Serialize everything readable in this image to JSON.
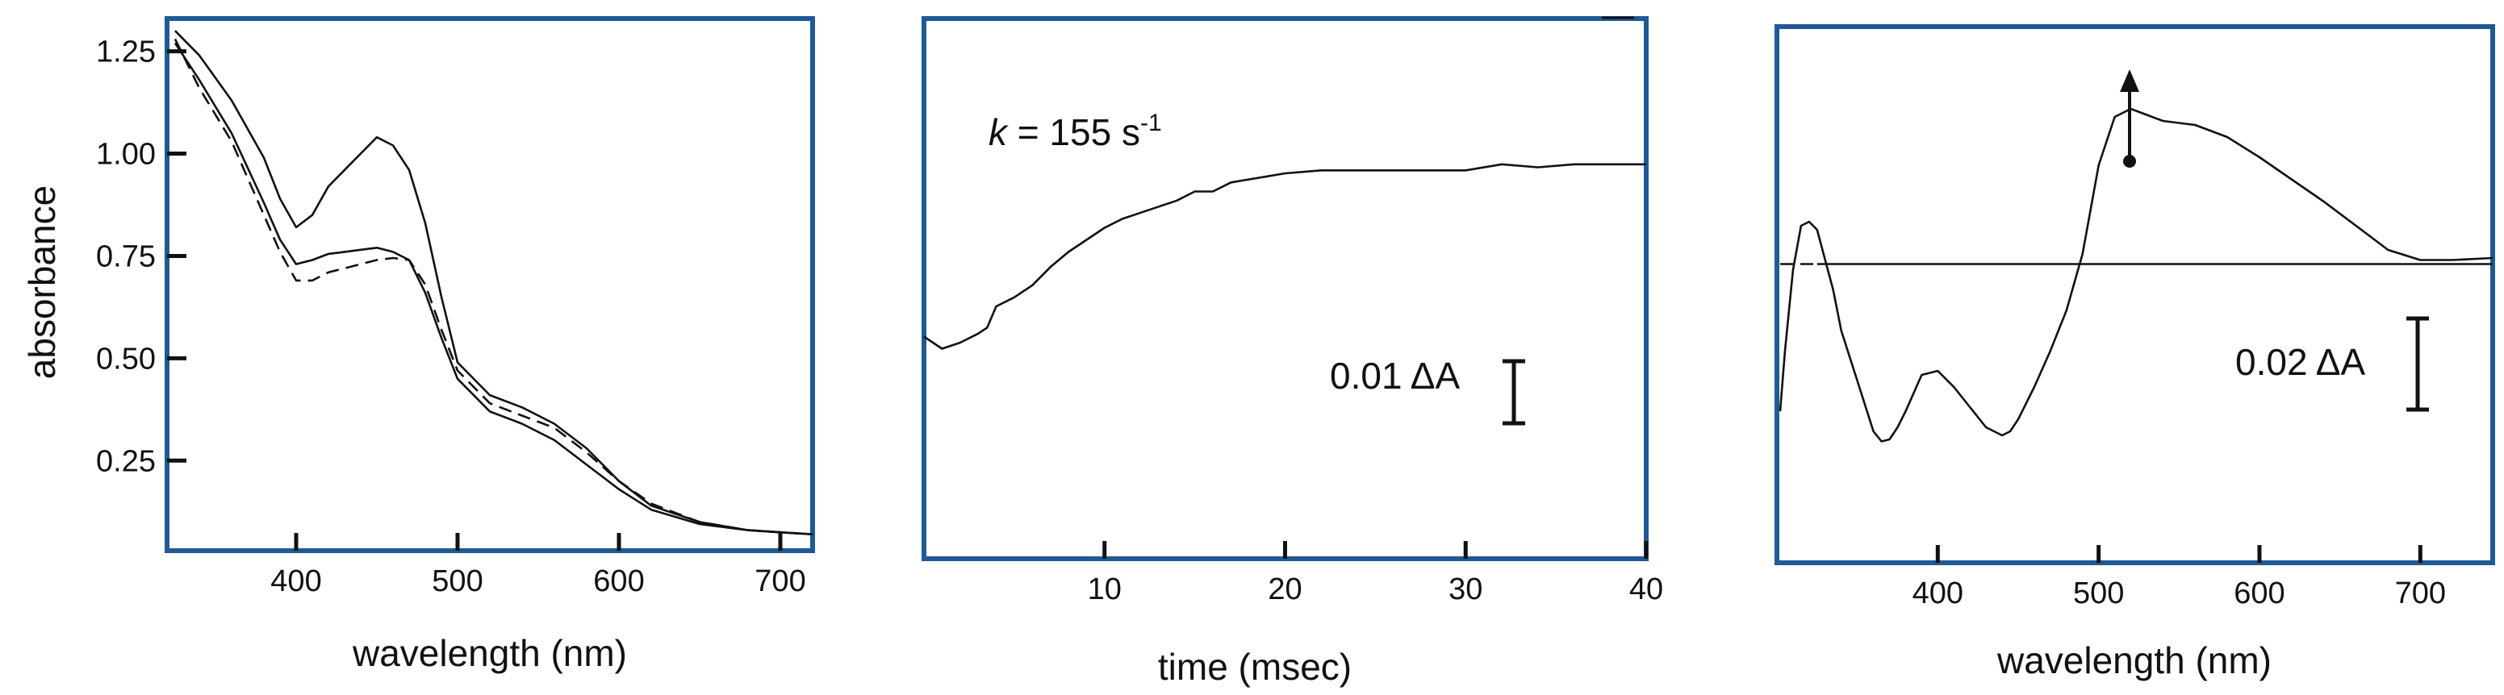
{
  "chart_data": [
    {
      "type": "line",
      "xlabel": "wavelength (nm)",
      "ylabel": "absorbance",
      "xlim": [
        320,
        720
      ],
      "ylim": [
        0.03,
        1.33
      ],
      "xticks": [
        400,
        500,
        600,
        700
      ],
      "xtick_labels": [
        "400",
        "500",
        "600",
        "700"
      ],
      "yticks": [
        0.25,
        0.5,
        0.75,
        1.0,
        1.25
      ],
      "ytick_labels": [
        "0.25",
        "0.50",
        "0.75",
        "1.00",
        "1.25"
      ],
      "series": [
        {
          "style": "solid",
          "x": [
            325,
            340,
            360,
            380,
            390,
            400,
            410,
            420,
            430,
            440,
            450,
            460,
            470,
            480,
            490,
            500,
            520,
            540,
            560,
            580,
            600,
            620,
            650,
            680,
            700,
            720
          ],
          "y": [
            1.3,
            1.24,
            1.13,
            0.99,
            0.89,
            0.82,
            0.85,
            0.92,
            0.96,
            1.0,
            1.04,
            1.02,
            0.96,
            0.83,
            0.65,
            0.49,
            0.41,
            0.38,
            0.34,
            0.28,
            0.2,
            0.14,
            0.1,
            0.08,
            0.075,
            0.07
          ]
        },
        {
          "style": "solid",
          "x": [
            325,
            340,
            360,
            380,
            390,
            400,
            410,
            420,
            430,
            440,
            450,
            460,
            470,
            480,
            490,
            500,
            520,
            540,
            560,
            580,
            600,
            620,
            650,
            680,
            700,
            720
          ],
          "y": [
            1.27,
            1.18,
            1.05,
            0.88,
            0.79,
            0.73,
            0.74,
            0.755,
            0.76,
            0.765,
            0.77,
            0.76,
            0.74,
            0.66,
            0.55,
            0.45,
            0.37,
            0.34,
            0.3,
            0.24,
            0.18,
            0.13,
            0.095,
            0.08,
            0.075,
            0.07
          ]
        },
        {
          "style": "dashed",
          "x": [
            325,
            340,
            360,
            380,
            390,
            400,
            410,
            420,
            430,
            440,
            450,
            460,
            470,
            480,
            490,
            500,
            520,
            540,
            560,
            580,
            600,
            620,
            650,
            680,
            700,
            720
          ],
          "y": [
            1.28,
            1.16,
            1.03,
            0.85,
            0.76,
            0.69,
            0.69,
            0.71,
            0.72,
            0.73,
            0.74,
            0.745,
            0.74,
            0.68,
            0.57,
            0.47,
            0.39,
            0.36,
            0.33,
            0.27,
            0.2,
            0.145,
            0.1,
            0.08,
            0.075,
            0.07
          ]
        }
      ]
    },
    {
      "type": "line",
      "xlabel": "time (msec)",
      "ylabel": "",
      "xlim": [
        0,
        40
      ],
      "ylim": [
        0,
        1
      ],
      "xticks": [
        10,
        20,
        30,
        40
      ],
      "xtick_labels": [
        "10",
        "20",
        "30",
        "40"
      ],
      "annotation": {
        "k_symbol": "k",
        "k_text": " = 155 s",
        "k_sup": "-1"
      },
      "scale_bar": "0.01 ΔA",
      "series": [
        {
          "style": "solid",
          "x": [
            0,
            0.5,
            1,
            2,
            3,
            3.5,
            4,
            5,
            6,
            7,
            8,
            9,
            10,
            11,
            12,
            13,
            14,
            15,
            16,
            17,
            18,
            19,
            20,
            22,
            24,
            26,
            28,
            30,
            32,
            34,
            36,
            38,
            40
          ],
          "y": [
            0.38,
            0.36,
            0.34,
            0.36,
            0.39,
            0.41,
            0.48,
            0.51,
            0.55,
            0.61,
            0.66,
            0.7,
            0.74,
            0.77,
            0.79,
            0.81,
            0.83,
            0.86,
            0.86,
            0.89,
            0.9,
            0.91,
            0.92,
            0.93,
            0.93,
            0.93,
            0.93,
            0.93,
            0.95,
            0.94,
            0.95,
            0.95,
            0.95
          ]
        }
      ]
    },
    {
      "type": "line",
      "xlabel": "wavelength (nm)",
      "ylabel": "",
      "xlim": [
        300,
        745
      ],
      "ylim": [
        -1,
        1
      ],
      "xticks": [
        400,
        500,
        600,
        700
      ],
      "xtick_labels": [
        "400",
        "500",
        "600",
        "700"
      ],
      "scale_bar": "0.02 ΔA",
      "series": [
        {
          "style": "solid",
          "x": [
            302,
            305,
            310,
            315,
            320,
            325,
            330,
            335,
            340,
            350,
            360,
            365,
            370,
            375,
            380,
            390,
            400,
            410,
            420,
            430,
            440,
            445,
            450,
            460,
            470,
            480,
            490,
            500,
            510,
            520,
            530,
            540,
            560,
            580,
            600,
            620,
            640,
            660,
            680,
            700,
            720,
            745
          ],
          "y": [
            -0.7,
            -0.4,
            0.0,
            0.22,
            0.24,
            0.2,
            0.05,
            -0.1,
            -0.3,
            -0.55,
            -0.8,
            -0.85,
            -0.84,
            -0.78,
            -0.7,
            -0.52,
            -0.5,
            -0.58,
            -0.68,
            -0.78,
            -0.82,
            -0.8,
            -0.74,
            -0.58,
            -0.4,
            -0.2,
            0.08,
            0.52,
            0.76,
            0.8,
            0.77,
            0.74,
            0.72,
            0.66,
            0.56,
            0.45,
            0.34,
            0.22,
            0.1,
            0.05,
            0.05,
            0.06
          ]
        },
        {
          "style": "dashed",
          "x": [
            302,
            315,
            325
          ],
          "y": [
            0.03,
            0.03,
            0.03
          ]
        },
        {
          "style": "solid",
          "x": [
            325,
            745
          ],
          "y": [
            0.03,
            0.03
          ]
        }
      ]
    }
  ]
}
